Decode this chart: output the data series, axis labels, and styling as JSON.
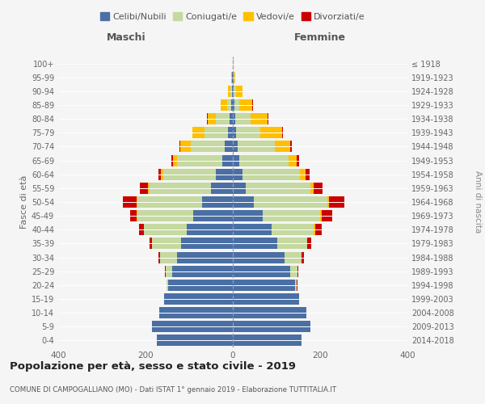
{
  "age_groups": [
    "0-4",
    "5-9",
    "10-14",
    "15-19",
    "20-24",
    "25-29",
    "30-34",
    "35-39",
    "40-44",
    "45-49",
    "50-54",
    "55-59",
    "60-64",
    "65-69",
    "70-74",
    "75-79",
    "80-84",
    "85-89",
    "90-94",
    "95-99",
    "100+"
  ],
  "birth_years": [
    "2014-2018",
    "2009-2013",
    "2004-2008",
    "1999-2003",
    "1994-1998",
    "1989-1993",
    "1984-1988",
    "1979-1983",
    "1974-1978",
    "1969-1973",
    "1964-1968",
    "1959-1963",
    "1954-1958",
    "1949-1953",
    "1944-1948",
    "1939-1943",
    "1934-1938",
    "1929-1933",
    "1924-1928",
    "1919-1923",
    "≤ 1918"
  ],
  "colors": {
    "celibi": "#4a6fa5",
    "coniugati": "#c5d9a0",
    "vedovi": "#ffc000",
    "divorziati": "#cc0000"
  },
  "maschi": {
    "celibi": [
      175,
      185,
      168,
      158,
      148,
      138,
      128,
      118,
      105,
      90,
      70,
      50,
      38,
      25,
      18,
      12,
      8,
      4,
      2,
      1,
      0
    ],
    "coniugati": [
      0,
      0,
      0,
      0,
      4,
      16,
      38,
      68,
      98,
      128,
      148,
      140,
      122,
      102,
      78,
      52,
      30,
      9,
      4,
      1,
      0
    ],
    "vedovi": [
      0,
      0,
      0,
      0,
      0,
      0,
      0,
      0,
      1,
      2,
      3,
      5,
      5,
      10,
      25,
      28,
      20,
      15,
      6,
      1,
      0
    ],
    "divorziati": [
      0,
      0,
      0,
      0,
      0,
      2,
      5,
      5,
      10,
      15,
      30,
      18,
      5,
      3,
      2,
      1,
      1,
      0,
      0,
      0,
      0
    ]
  },
  "femmine": {
    "celibi": [
      158,
      178,
      168,
      152,
      142,
      132,
      118,
      102,
      88,
      68,
      48,
      30,
      22,
      15,
      12,
      8,
      5,
      3,
      2,
      1,
      0
    ],
    "coniugati": [
      0,
      0,
      0,
      0,
      5,
      16,
      40,
      68,
      98,
      132,
      168,
      148,
      132,
      112,
      85,
      55,
      35,
      12,
      5,
      2,
      0
    ],
    "vedovi": [
      0,
      0,
      0,
      0,
      0,
      0,
      0,
      1,
      2,
      3,
      5,
      8,
      12,
      20,
      35,
      50,
      40,
      30,
      15,
      3,
      1
    ],
    "divorziati": [
      0,
      0,
      0,
      0,
      1,
      2,
      5,
      8,
      15,
      25,
      35,
      20,
      10,
      5,
      3,
      2,
      2,
      1,
      0,
      0,
      0
    ]
  },
  "title": "Popolazione per età, sesso e stato civile - 2019",
  "subtitle": "COMUNE DI CAMPOGALLIANO (MO) - Dati ISTAT 1° gennaio 2019 - Elaborazione TUTTITALIA.IT",
  "xlabel_left": "Maschi",
  "xlabel_right": "Femmine",
  "ylabel_left": "Fasce di età",
  "ylabel_right": "Anni di nascita",
  "xlim": 400,
  "bg_color": "#f5f5f5",
  "legend_labels": [
    "Celibi/Nubili",
    "Coniugati/e",
    "Vedovi/e",
    "Divorziati/e"
  ]
}
